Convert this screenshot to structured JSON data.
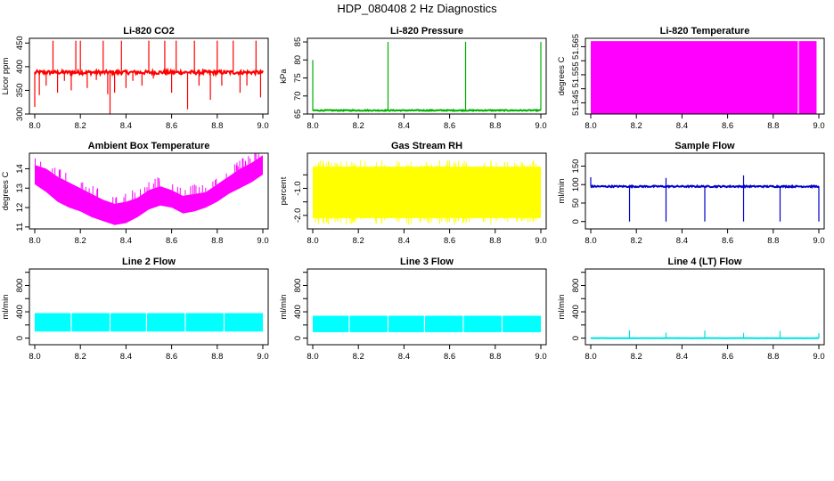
{
  "page": {
    "title": "HDP_080408  2 Hz Diagnostics"
  },
  "style": {
    "background": "#ffffff",
    "axis_color": "#000000"
  },
  "chart_data": [
    {
      "type": "line",
      "title": "Li-820 CO2",
      "ylabel": "Licor ppm",
      "xlim": [
        8.0,
        9.0
      ],
      "ylim": [
        300,
        460
      ],
      "xticks": [
        8.0,
        8.2,
        8.4,
        8.6,
        8.8,
        9.0
      ],
      "xtick_labels": [
        "8.0",
        "8.2",
        "8.4",
        "8.6",
        "8.8",
        "9.0"
      ],
      "yticks": [
        300,
        350,
        400,
        450
      ],
      "ytick_labels": [
        "300",
        "350",
        "400",
        "450"
      ],
      "series": [
        {
          "color": "#ff0000",
          "baseline": 388,
          "noise": 4,
          "spikes": [
            [
              8.0,
              315
            ],
            [
              8.02,
              340
            ],
            [
              8.05,
              360
            ],
            [
              8.08,
              455
            ],
            [
              8.1,
              345
            ],
            [
              8.13,
              370
            ],
            [
              8.16,
              350
            ],
            [
              8.18,
              455
            ],
            [
              8.2,
              455
            ],
            [
              8.23,
              355
            ],
            [
              8.27,
              372
            ],
            [
              8.3,
              455
            ],
            [
              8.32,
              342
            ],
            [
              8.33,
              300
            ],
            [
              8.35,
              345
            ],
            [
              8.38,
              455
            ],
            [
              8.4,
              355
            ],
            [
              8.43,
              370
            ],
            [
              8.47,
              360
            ],
            [
              8.5,
              455
            ],
            [
              8.52,
              375
            ],
            [
              8.57,
              455
            ],
            [
              8.6,
              345
            ],
            [
              8.62,
              455
            ],
            [
              8.67,
              310
            ],
            [
              8.7,
              455
            ],
            [
              8.72,
              360
            ],
            [
              8.77,
              330
            ],
            [
              8.8,
              455
            ],
            [
              8.82,
              360
            ],
            [
              8.87,
              455
            ],
            [
              8.9,
              345
            ],
            [
              8.93,
              360
            ],
            [
              8.97,
              455
            ],
            [
              8.99,
              335
            ]
          ]
        }
      ]
    },
    {
      "type": "line",
      "title": "Li-820 Pressure",
      "ylabel": "kPa",
      "xlim": [
        8.0,
        9.0
      ],
      "ylim": [
        65,
        86
      ],
      "xticks": [
        8.0,
        8.2,
        8.4,
        8.6,
        8.8,
        9.0
      ],
      "xtick_labels": [
        "8.0",
        "8.2",
        "8.4",
        "8.6",
        "8.8",
        "9.0"
      ],
      "yticks": [
        65,
        70,
        75,
        80,
        85
      ],
      "ytick_labels": [
        "65",
        "70",
        "75",
        "80",
        "85"
      ],
      "series": [
        {
          "color": "#00b000",
          "baseline": 66.0,
          "noise": 0.15,
          "spikes": [
            [
              8.0,
              80
            ],
            [
              8.33,
              85
            ],
            [
              8.67,
              85
            ],
            [
              9.0,
              85
            ]
          ]
        }
      ]
    },
    {
      "type": "area",
      "title": "Li-820 Temperature",
      "ylabel": "degrees C",
      "xlim": [
        8.0,
        9.0
      ],
      "ylim": [
        51.541,
        51.568
      ],
      "xticks": [
        8.0,
        8.2,
        8.4,
        8.6,
        8.8,
        9.0
      ],
      "xtick_labels": [
        "8.0",
        "8.2",
        "8.4",
        "8.6",
        "8.8",
        "9.0"
      ],
      "yticks": [
        51.545,
        51.55,
        51.555,
        51.56,
        51.565
      ],
      "ytick_labels": [
        "51.545",
        "",
        "51.555",
        "",
        "51.565"
      ],
      "series": [
        {
          "color": "#ff00ff",
          "band": [
            51.541,
            51.567
          ],
          "gaps": [
            8.91
          ],
          "x_end": 8.99
        }
      ]
    },
    {
      "type": "area",
      "title": "Ambient Box Temperature",
      "ylabel": "degrees C",
      "xlim": [
        8.0,
        9.0
      ],
      "ylim": [
        10.9,
        14.8
      ],
      "xticks": [
        8.0,
        8.2,
        8.4,
        8.6,
        8.8,
        9.0
      ],
      "xtick_labels": [
        "8.0",
        "8.2",
        "8.4",
        "8.6",
        "8.8",
        "9.0"
      ],
      "yticks": [
        11,
        12,
        13,
        14
      ],
      "ytick_labels": [
        "11",
        "12",
        "13",
        "14"
      ],
      "series": [
        {
          "color": "#ff00ff",
          "x": [
            8.0,
            8.05,
            8.1,
            8.15,
            8.2,
            8.25,
            8.3,
            8.35,
            8.4,
            8.45,
            8.5,
            8.55,
            8.6,
            8.65,
            8.7,
            8.75,
            8.8,
            8.85,
            8.9,
            8.95,
            9.0
          ],
          "upper": [
            14.2,
            14.0,
            13.6,
            13.3,
            13.0,
            12.7,
            12.4,
            12.2,
            12.3,
            12.5,
            12.9,
            13.1,
            12.9,
            12.6,
            12.7,
            12.8,
            13.2,
            13.6,
            14.0,
            14.3,
            14.7
          ],
          "lower": [
            13.2,
            12.8,
            12.3,
            12.0,
            11.8,
            11.5,
            11.3,
            11.1,
            11.2,
            11.5,
            11.9,
            12.1,
            12.0,
            11.7,
            11.8,
            12.0,
            12.3,
            12.7,
            13.0,
            13.3,
            13.7
          ]
        }
      ]
    },
    {
      "type": "area",
      "title": "Gas Stream RH",
      "ylabel": "percent",
      "xlim": [
        8.0,
        9.0
      ],
      "ylim": [
        -2.5,
        0.3
      ],
      "xticks": [
        8.0,
        8.2,
        8.4,
        8.6,
        8.8,
        9.0
      ],
      "xtick_labels": [
        "8.0",
        "8.2",
        "8.4",
        "8.6",
        "8.8",
        "9.0"
      ],
      "yticks": [
        -2.0,
        -1.5,
        -1.0,
        -0.5
      ],
      "ytick_labels": [
        "-2.0",
        "",
        "-1.0",
        ""
      ],
      "series": [
        {
          "color": "#ffff00",
          "band": [
            -2.1,
            -0.2
          ],
          "noise": 0.25
        }
      ]
    },
    {
      "type": "line",
      "title": "Sample Flow",
      "ylabel": "ml/min",
      "xlim": [
        8.0,
        9.0
      ],
      "ylim": [
        -20,
        185
      ],
      "xticks": [
        8.0,
        8.2,
        8.4,
        8.6,
        8.8,
        9.0
      ],
      "xtick_labels": [
        "8.0",
        "8.2",
        "8.4",
        "8.6",
        "8.8",
        "9.0"
      ],
      "yticks": [
        0,
        50,
        100,
        150
      ],
      "ytick_labels": [
        "0",
        "50",
        "100",
        "150"
      ],
      "series": [
        {
          "color": "#0000cc",
          "baseline": 95,
          "noise": 2,
          "spikes": [
            [
              8.0,
              120
            ],
            [
              8.17,
              0
            ],
            [
              8.33,
              0
            ],
            [
              8.33,
              118
            ],
            [
              8.5,
              0
            ],
            [
              8.67,
              0
            ],
            [
              8.67,
              125
            ],
            [
              8.83,
              0
            ],
            [
              9.0,
              0
            ]
          ]
        }
      ]
    },
    {
      "type": "area",
      "title": "Line 2 Flow",
      "ylabel": "ml/min",
      "xlim": [
        8.0,
        9.0
      ],
      "ylim": [
        -100,
        1050
      ],
      "xticks": [
        8.0,
        8.2,
        8.4,
        8.6,
        8.8,
        9.0
      ],
      "xtick_labels": [
        "8.0",
        "8.2",
        "8.4",
        "8.6",
        "8.8",
        "9.0"
      ],
      "yticks": [
        0,
        200,
        400,
        600,
        800,
        1000
      ],
      "ytick_labels": [
        "0",
        "",
        "400",
        "",
        "800",
        ""
      ],
      "series": [
        {
          "color": "#00ffff",
          "band": [
            100,
            380
          ],
          "gaps": [
            8.16,
            8.33,
            8.49,
            8.66,
            8.83
          ]
        }
      ]
    },
    {
      "type": "area",
      "title": "Line 3 Flow",
      "ylabel": "ml/min",
      "xlim": [
        8.0,
        9.0
      ],
      "ylim": [
        -100,
        1050
      ],
      "xticks": [
        8.0,
        8.2,
        8.4,
        8.6,
        8.8,
        9.0
      ],
      "xtick_labels": [
        "8.0",
        "8.2",
        "8.4",
        "8.6",
        "8.8",
        "9.0"
      ],
      "yticks": [
        0,
        200,
        400,
        600,
        800,
        1000
      ],
      "ytick_labels": [
        "0",
        "",
        "400",
        "",
        "800",
        ""
      ],
      "series": [
        {
          "color": "#00ffff",
          "band": [
            90,
            340
          ],
          "gaps": [
            8.16,
            8.33,
            8.49,
            8.66,
            8.83
          ]
        }
      ]
    },
    {
      "type": "line",
      "title": "Line 4 (LT) Flow",
      "ylabel": "ml/min",
      "xlim": [
        8.0,
        9.0
      ],
      "ylim": [
        -100,
        1050
      ],
      "xticks": [
        8.0,
        8.2,
        8.4,
        8.6,
        8.8,
        9.0
      ],
      "xtick_labels": [
        "8.0",
        "8.2",
        "8.4",
        "8.6",
        "8.8",
        "9.0"
      ],
      "yticks": [
        0,
        200,
        400,
        600,
        800,
        1000
      ],
      "ytick_labels": [
        "0",
        "",
        "400",
        "",
        "800",
        ""
      ],
      "series": [
        {
          "color": "#00e0e0",
          "baseline": 0,
          "noise": 1,
          "spikes": [
            [
              8.17,
              120
            ],
            [
              8.33,
              85
            ],
            [
              8.5,
              115
            ],
            [
              8.67,
              80
            ],
            [
              8.83,
              110
            ],
            [
              9.0,
              75
            ]
          ]
        }
      ]
    }
  ]
}
